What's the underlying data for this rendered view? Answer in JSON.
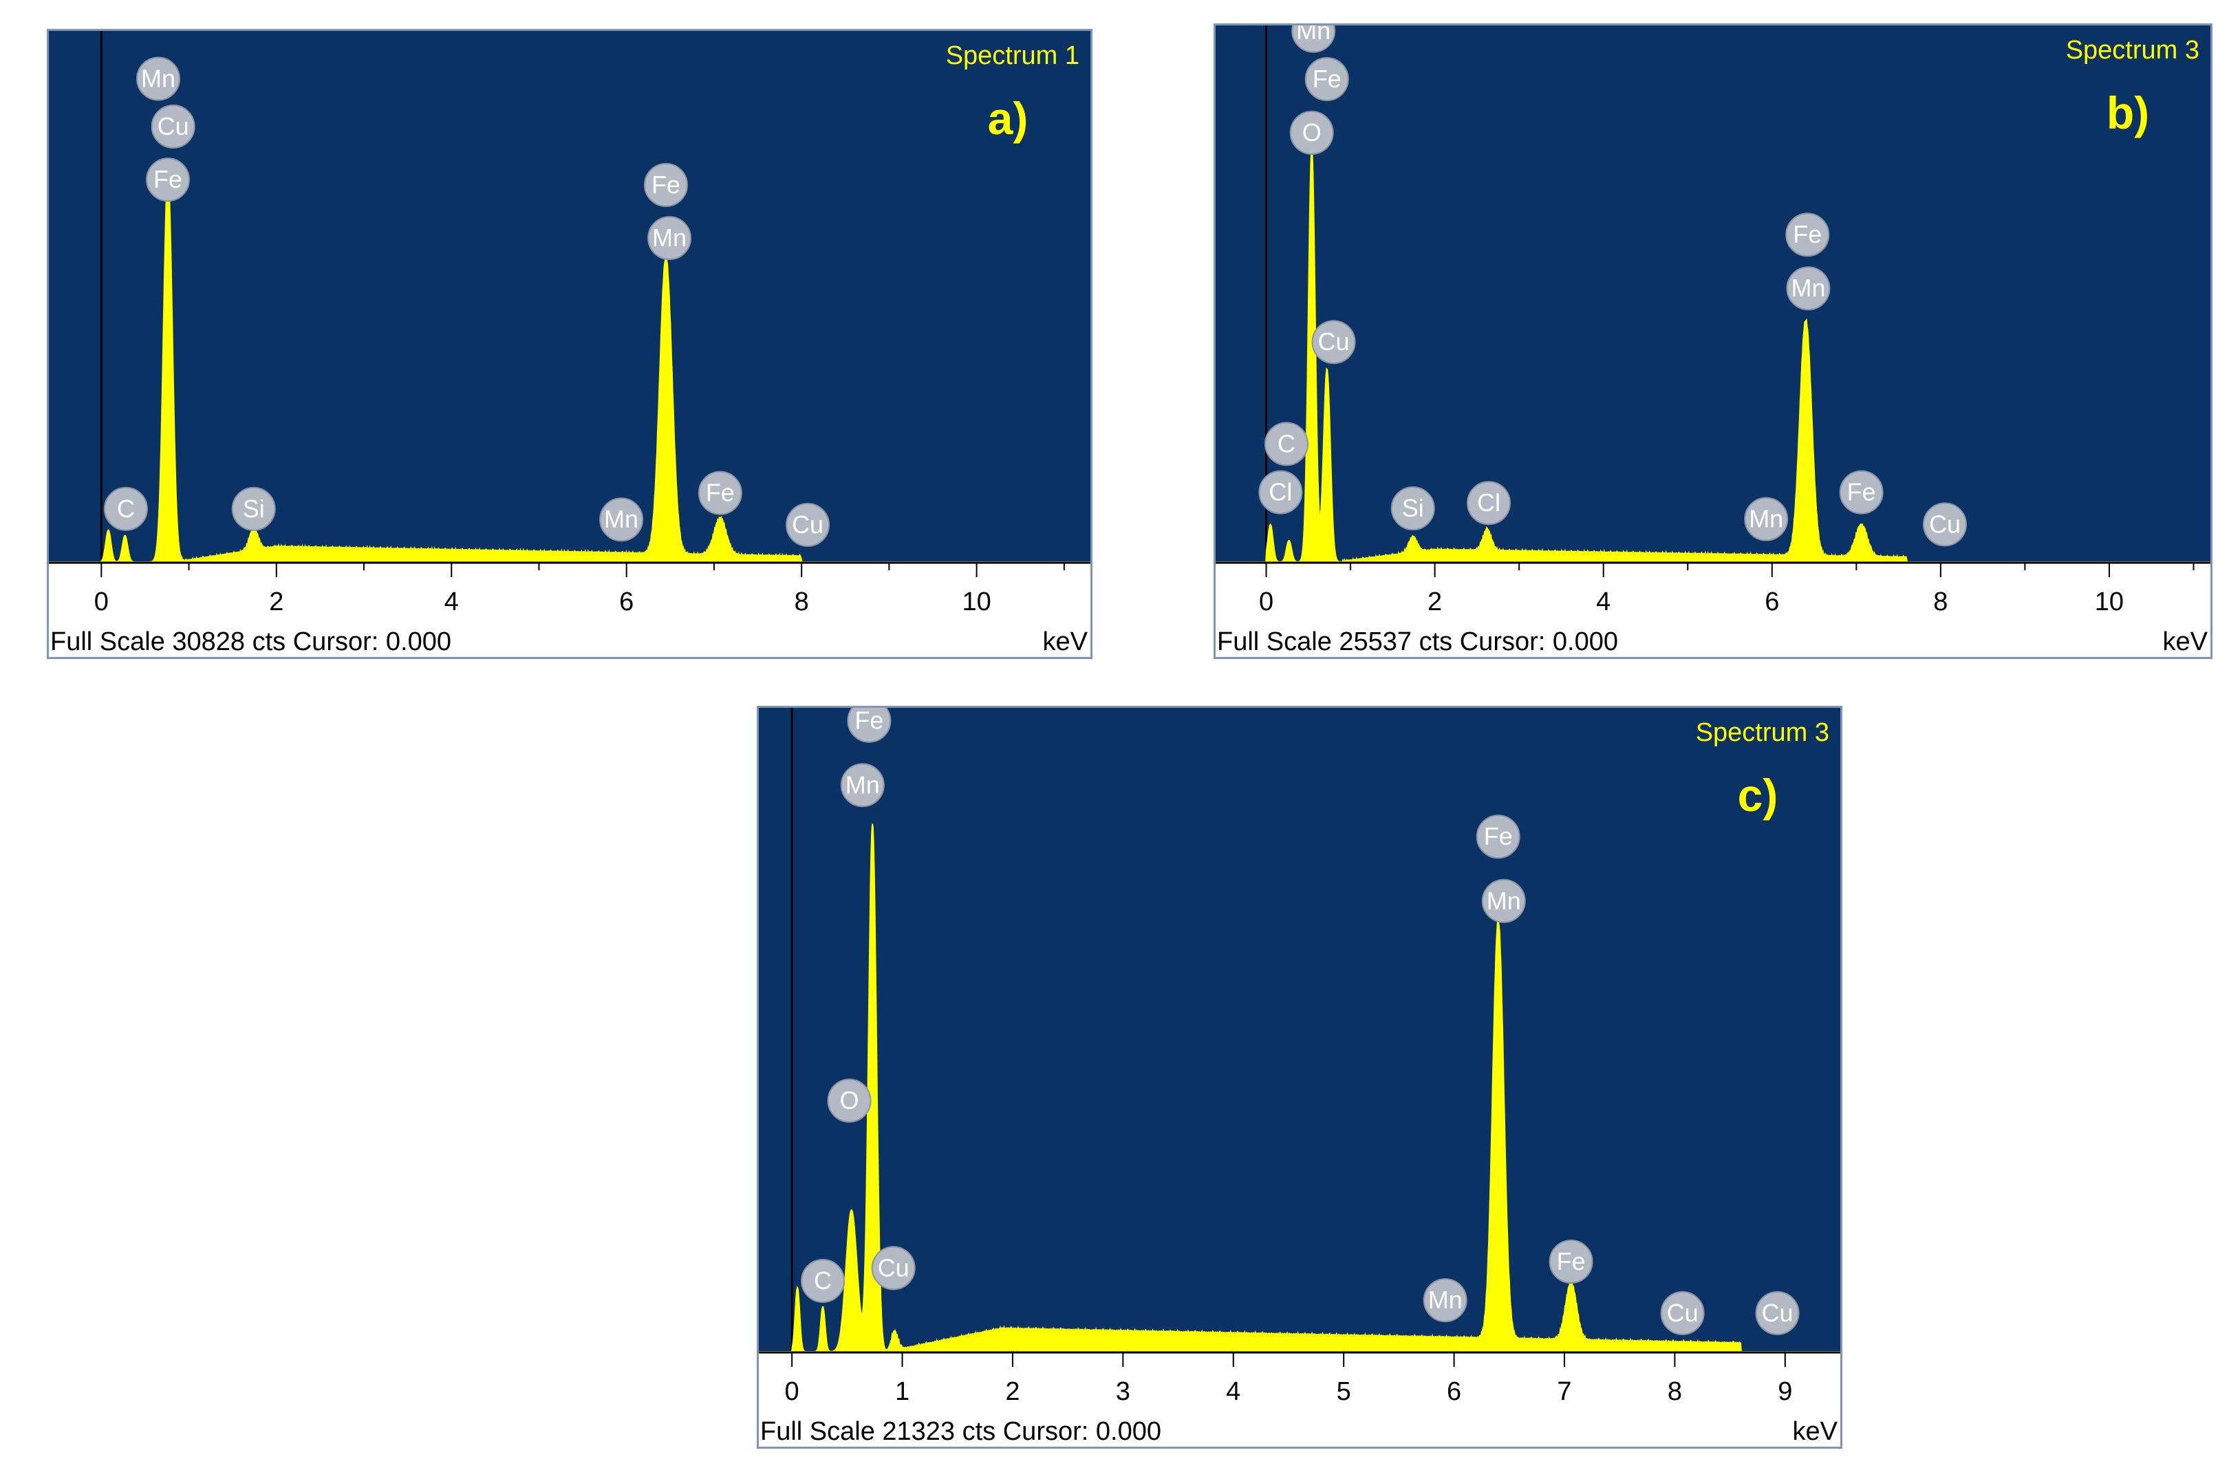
{
  "colors": {
    "plot_background": "#0a3264",
    "spectrum_fill": "#ffff00",
    "label_text": "#ffff00",
    "badge_fill": "#b4bac4",
    "badge_text": "#ffffff"
  },
  "chart_data": [
    {
      "type": "area",
      "panel_letter": "a)",
      "spectrum_label": "Spectrum 1",
      "full_scale_text": "Full Scale 30828 cts Cursor: 0.000",
      "unit_label": "keV",
      "xlim": [
        -0.6,
        11.3
      ],
      "ylim": [
        0,
        1
      ],
      "x_ticks": [
        0,
        2,
        4,
        6,
        8,
        10
      ],
      "x_tick_labels": [
        "0",
        "2",
        "4",
        "6",
        "8",
        "10"
      ],
      "peaks": [
        {
          "x": 0.08,
          "y": 0.06,
          "w": 0.03
        },
        {
          "x": 0.27,
          "y": 0.05,
          "w": 0.03
        },
        {
          "x": 0.76,
          "y": 0.73,
          "w": 0.05
        },
        {
          "x": 1.74,
          "y": 0.04,
          "w": 0.05
        },
        {
          "x": 6.45,
          "y": 0.56,
          "w": 0.07
        },
        {
          "x": 7.07,
          "y": 0.07,
          "w": 0.07
        }
      ],
      "bremsstrahlung": {
        "start": 0.9,
        "amp": 0.028,
        "peak_at": 2.0,
        "end": 8.0
      },
      "element_markers": [
        {
          "label": "Mn",
          "x": 0.65,
          "y": 0.91
        },
        {
          "label": "Cu",
          "x": 0.82,
          "y": 0.82
        },
        {
          "label": "Fe",
          "x": 0.76,
          "y": 0.72
        },
        {
          "label": "C",
          "x": 0.28,
          "y": 0.1
        },
        {
          "label": "Si",
          "x": 1.74,
          "y": 0.1
        },
        {
          "label": "Fe",
          "x": 6.45,
          "y": 0.71
        },
        {
          "label": "Mn",
          "x": 6.49,
          "y": 0.61
        },
        {
          "label": "Mn",
          "x": 5.94,
          "y": 0.08
        },
        {
          "label": "Fe",
          "x": 7.07,
          "y": 0.13
        },
        {
          "label": "Cu",
          "x": 8.07,
          "y": 0.07
        }
      ]
    },
    {
      "type": "area",
      "panel_letter": "b)",
      "spectrum_label": "Spectrum 3",
      "full_scale_text": "Full Scale 25537 cts Cursor: 0.000",
      "unit_label": "keV",
      "xlim": [
        -0.6,
        11.2
      ],
      "ylim": [
        0,
        1
      ],
      "x_ticks": [
        0,
        2,
        4,
        6,
        8,
        10
      ],
      "x_tick_labels": [
        "0",
        "2",
        "4",
        "6",
        "8",
        "10"
      ],
      "peaks": [
        {
          "x": 0.05,
          "y": 0.07,
          "w": 0.03
        },
        {
          "x": 0.27,
          "y": 0.04,
          "w": 0.03
        },
        {
          "x": 0.54,
          "y": 0.77,
          "w": 0.04
        },
        {
          "x": 0.72,
          "y": 0.36,
          "w": 0.04
        },
        {
          "x": 1.74,
          "y": 0.03,
          "w": 0.05
        },
        {
          "x": 2.62,
          "y": 0.04,
          "w": 0.05
        },
        {
          "x": 6.4,
          "y": 0.44,
          "w": 0.07
        },
        {
          "x": 7.06,
          "y": 0.06,
          "w": 0.07
        }
      ],
      "bremsstrahlung": {
        "start": 0.9,
        "amp": 0.022,
        "peak_at": 2.0,
        "end": 7.6
      },
      "element_markers": [
        {
          "label": "Mn",
          "x": 0.56,
          "y": 0.99
        },
        {
          "label": "Fe",
          "x": 0.72,
          "y": 0.9
        },
        {
          "label": "O",
          "x": 0.54,
          "y": 0.8
        },
        {
          "label": "Cu",
          "x": 0.8,
          "y": 0.41
        },
        {
          "label": "C",
          "x": 0.24,
          "y": 0.22
        },
        {
          "label": "Cl",
          "x": 0.17,
          "y": 0.13
        },
        {
          "label": "Si",
          "x": 1.74,
          "y": 0.1
        },
        {
          "label": "Cl",
          "x": 2.64,
          "y": 0.11
        },
        {
          "label": "Fe",
          "x": 6.42,
          "y": 0.61
        },
        {
          "label": "Mn",
          "x": 6.43,
          "y": 0.51
        },
        {
          "label": "Mn",
          "x": 5.93,
          "y": 0.08
        },
        {
          "label": "Fe",
          "x": 7.06,
          "y": 0.13
        },
        {
          "label": "Cu",
          "x": 8.05,
          "y": 0.07
        }
      ]
    },
    {
      "type": "area",
      "panel_letter": "c)",
      "spectrum_label": "Spectrum 3",
      "full_scale_text": "Full Scale 21323 cts Cursor: 0.000",
      "unit_label": "keV",
      "xlim": [
        -0.3,
        9.5
      ],
      "ylim": [
        0,
        1
      ],
      "x_ticks": [
        0,
        1,
        2,
        3,
        4,
        5,
        6,
        7,
        8,
        9
      ],
      "x_tick_labels": [
        "0",
        "1",
        "2",
        "3",
        "4",
        "5",
        "6",
        "7",
        "8",
        "9"
      ],
      "peaks": [
        {
          "x": 0.05,
          "y": 0.1,
          "w": 0.02
        },
        {
          "x": 0.28,
          "y": 0.07,
          "w": 0.02
        },
        {
          "x": 0.54,
          "y": 0.22,
          "w": 0.05
        },
        {
          "x": 0.73,
          "y": 0.82,
          "w": 0.035
        },
        {
          "x": 0.93,
          "y": 0.03,
          "w": 0.03
        },
        {
          "x": 6.4,
          "y": 0.65,
          "w": 0.05
        },
        {
          "x": 7.06,
          "y": 0.09,
          "w": 0.05
        }
      ],
      "bremsstrahlung": {
        "start": 0.9,
        "amp": 0.035,
        "peak_at": 1.9,
        "end": 8.6
      },
      "element_markers": [
        {
          "label": "Fe",
          "x": 0.7,
          "y": 0.98
        },
        {
          "label": "Mn",
          "x": 0.64,
          "y": 0.88
        },
        {
          "label": "O",
          "x": 0.52,
          "y": 0.39
        },
        {
          "label": "C",
          "x": 0.28,
          "y": 0.11
        },
        {
          "label": "Cu",
          "x": 0.92,
          "y": 0.13
        },
        {
          "label": "Fe",
          "x": 6.4,
          "y": 0.8
        },
        {
          "label": "Mn",
          "x": 6.45,
          "y": 0.7
        },
        {
          "label": "Mn",
          "x": 5.92,
          "y": 0.08
        },
        {
          "label": "Fe",
          "x": 7.06,
          "y": 0.14
        },
        {
          "label": "Cu",
          "x": 8.07,
          "y": 0.06
        },
        {
          "label": "Cu",
          "x": 8.93,
          "y": 0.06
        }
      ]
    }
  ]
}
